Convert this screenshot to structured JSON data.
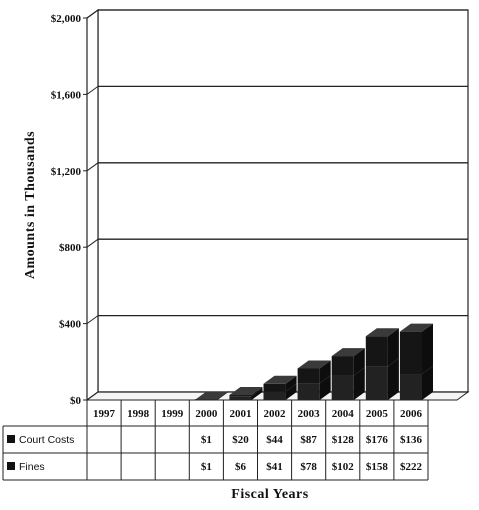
{
  "chart_data": {
    "type": "bar",
    "ylabel": "Amounts in Thousands",
    "xlabel": "Fiscal Years",
    "ylim": [
      0,
      2000
    ],
    "y_ticks": [
      "$0",
      "$400",
      "$800",
      "$1,200",
      "$1,600",
      "$2,000"
    ],
    "y_tick_values": [
      0,
      400,
      800,
      1200,
      1600,
      2000
    ],
    "categories": [
      "1997",
      "1998",
      "1999",
      "2000",
      "2001",
      "2002",
      "2003",
      "2004",
      "2005",
      "2006"
    ],
    "stacked": true,
    "grid": true,
    "legend": "table-left",
    "series": [
      {
        "name": "Court Costs",
        "values": [
          null,
          null,
          null,
          1,
          20,
          44,
          87,
          128,
          176,
          136
        ],
        "labels": [
          "",
          "",
          "",
          "$1",
          "$20",
          "$44",
          "$87",
          "$128",
          "$176",
          "$136"
        ],
        "color": "#1a1a1a"
      },
      {
        "name": "Fines",
        "values": [
          null,
          null,
          null,
          1,
          6,
          41,
          78,
          102,
          158,
          222
        ],
        "labels": [
          "",
          "",
          "",
          "$1",
          "$6",
          "$41",
          "$78",
          "$102",
          "$158",
          "$222"
        ],
        "color": "#2b2b2b"
      }
    ]
  }
}
